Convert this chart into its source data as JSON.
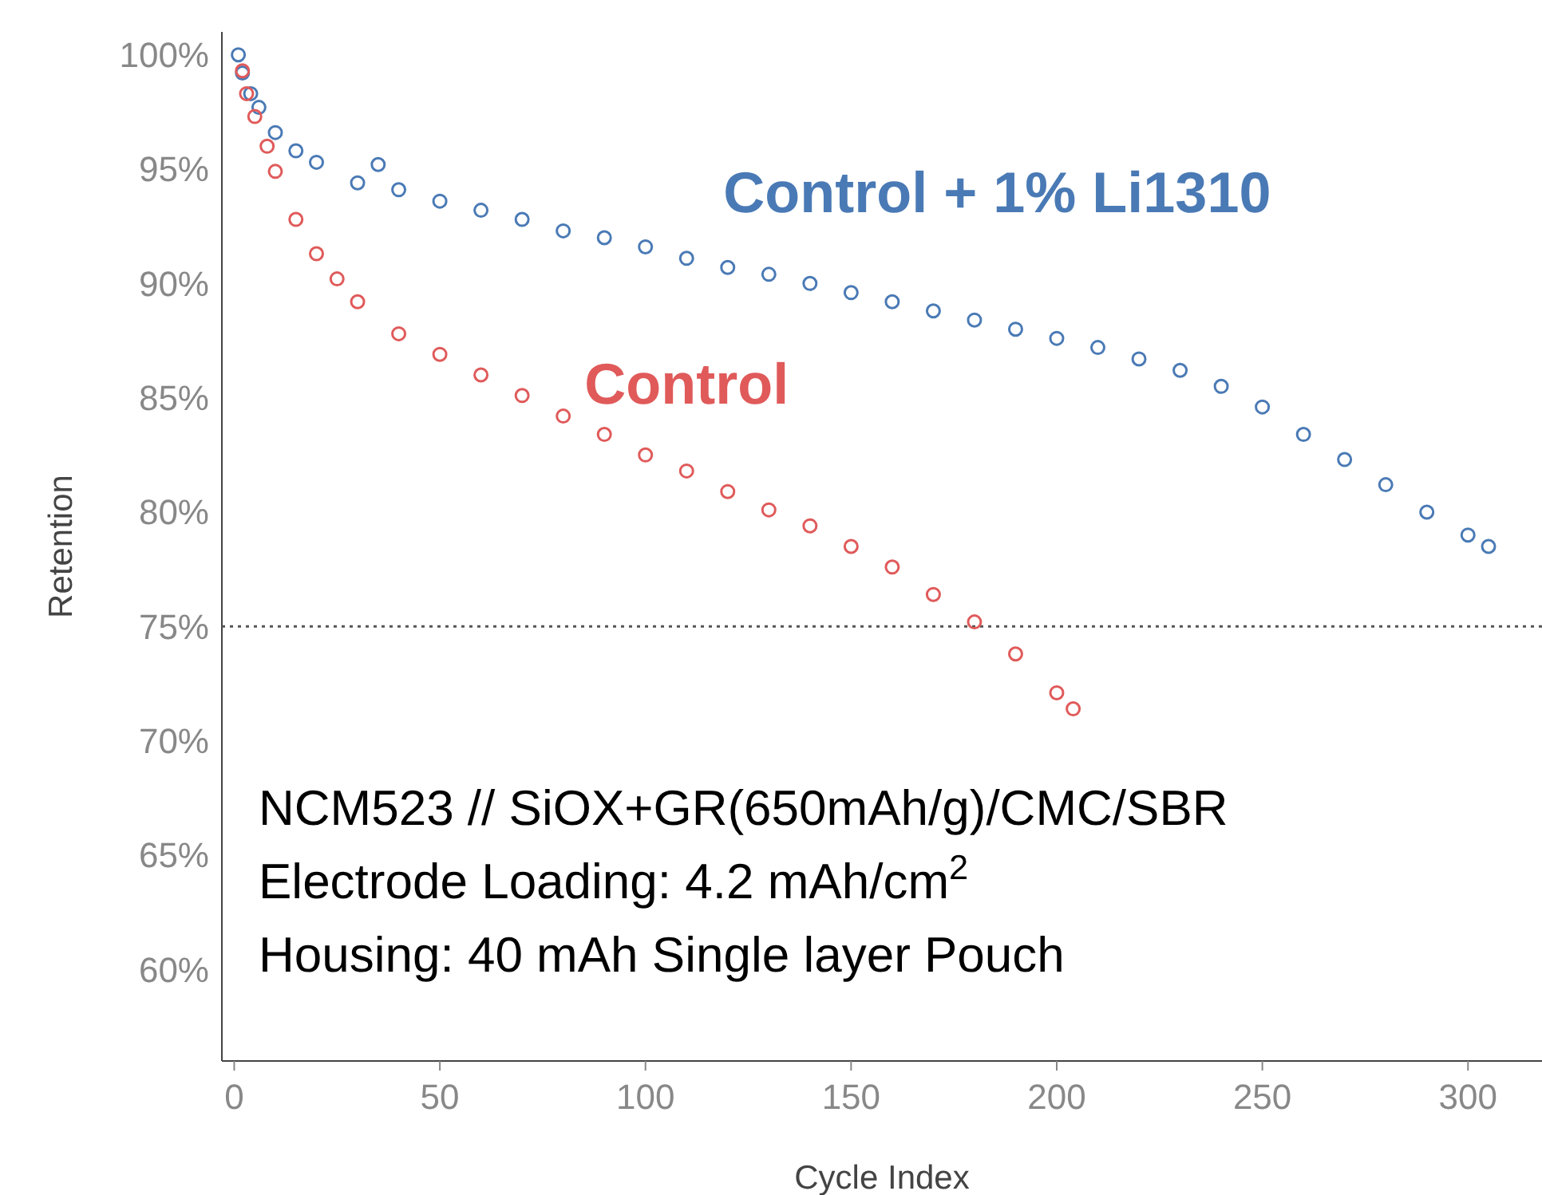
{
  "chart_data": {
    "type": "scatter",
    "xlabel": "Cycle Index",
    "ylabel": "Retention",
    "marker": "circle",
    "grid": false,
    "xlim": [
      -3,
      318
    ],
    "ylim": [
      56,
      101
    ],
    "xticks": [
      0,
      50,
      100,
      150,
      200,
      250,
      300
    ],
    "yticks": [
      {
        "value": 60,
        "label": "60%"
      },
      {
        "value": 65,
        "label": "65%"
      },
      {
        "value": 70,
        "label": "70%"
      },
      {
        "value": 75,
        "label": "75%"
      },
      {
        "value": 80,
        "label": "80%"
      },
      {
        "value": 85,
        "label": "85%"
      },
      {
        "value": 90,
        "label": "90%"
      },
      {
        "value": 95,
        "label": "95%"
      },
      {
        "value": 100,
        "label": "100%"
      }
    ],
    "ref_lines": [
      {
        "axis": "y",
        "value": 75,
        "label": null,
        "color": "#555555",
        "line_style": "dotted"
      }
    ],
    "series": [
      {
        "name": "Control + 1% Li1310",
        "color": "#4a7ab5",
        "x": [
          1,
          2,
          4,
          6,
          10,
          15,
          20,
          30,
          35,
          40,
          50,
          60,
          70,
          80,
          90,
          100,
          110,
          120,
          130,
          140,
          150,
          160,
          170,
          180,
          190,
          200,
          210,
          220,
          230,
          240,
          250,
          260,
          270,
          280,
          290,
          300,
          305
        ],
        "values": [
          100,
          99.2,
          98.3,
          97.7,
          96.6,
          95.8,
          95.3,
          94.4,
          95.2,
          94.1,
          93.6,
          93.2,
          92.8,
          92.3,
          92,
          91.6,
          91.1,
          90.7,
          90.4,
          90,
          89.6,
          89.2,
          88.8,
          88.4,
          88,
          87.6,
          87.2,
          86.7,
          86.2,
          85.5,
          84.6,
          83.4,
          82.3,
          81.2,
          80,
          79,
          78.5
        ]
      },
      {
        "name": "Control",
        "color": "#e05a5a",
        "x": [
          2,
          3,
          5,
          8,
          10,
          15,
          20,
          25,
          30,
          40,
          50,
          60,
          70,
          80,
          90,
          100,
          110,
          120,
          130,
          140,
          150,
          160,
          170,
          180,
          190,
          200,
          204
        ],
        "values": [
          99.3,
          98.3,
          97.3,
          96,
          94.9,
          92.8,
          91.3,
          90.2,
          89.2,
          87.8,
          86.9,
          86,
          85.1,
          84.2,
          83.4,
          82.5,
          81.8,
          80.9,
          80.1,
          79.4,
          78.5,
          77.6,
          76.4,
          75.2,
          73.8,
          72.1,
          71.4
        ]
      }
    ],
    "annotations": [
      "NCM523 // SiOX+GR(650mAh/g)/CMC/SBR",
      "Electrode Loading: 4.2 mAh/cm$^{2}$",
      "Housing: 40 mAh Single layer Pouch"
    ]
  }
}
